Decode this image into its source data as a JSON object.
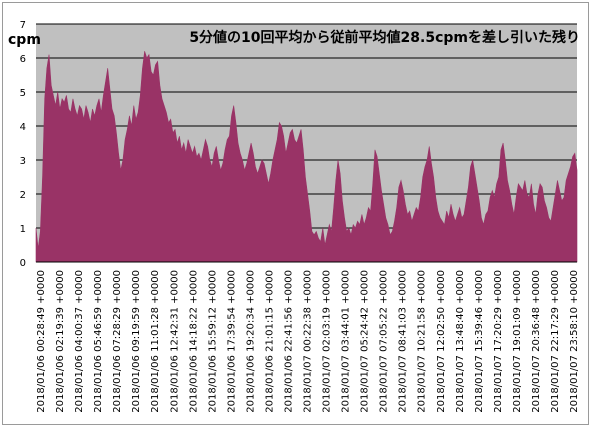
{
  "chart_data": {
    "type": "area",
    "title": "5分値の10回平均から従前平均値28.5cpmを差し引いた残り",
    "ylabel": "cpm",
    "xlabel": "",
    "ylim": [
      0,
      7
    ],
    "yticks": [
      "0",
      "1",
      "2",
      "3",
      "4",
      "5",
      "6",
      "7"
    ],
    "grid": true,
    "legend": "none",
    "colors": {
      "plot_bg": "#c0c0c0",
      "fill": "#993366",
      "grid": "#000000"
    },
    "series": [
      {
        "values": [
          1.0,
          0.4,
          0.9,
          2.5,
          4.8,
          5.7,
          6.1,
          5.2,
          4.9,
          4.6,
          5.0,
          4.5,
          4.8,
          4.7,
          4.9,
          4.5,
          4.4,
          4.8,
          4.5,
          4.3,
          4.6,
          4.5,
          4.2,
          4.6,
          4.4,
          4.1,
          4.5,
          4.3,
          4.6,
          4.8,
          4.4,
          4.9,
          5.3,
          5.7,
          5.1,
          4.5,
          4.3,
          3.8,
          3.2,
          2.7,
          3.0,
          3.6,
          3.9,
          4.3,
          4.0,
          4.6,
          4.2,
          4.4,
          4.9,
          5.7,
          6.2,
          6.0,
          6.1,
          5.6,
          5.5,
          5.8,
          5.9,
          5.2,
          4.8,
          4.6,
          4.4,
          4.1,
          4.2,
          3.8,
          3.9,
          3.5,
          3.7,
          3.3,
          3.5,
          3.2,
          3.6,
          3.4,
          3.2,
          3.4,
          3.1,
          3.2,
          3.0,
          3.3,
          3.6,
          3.4,
          3.0,
          2.8,
          3.2,
          3.4,
          3.0,
          2.7,
          2.9,
          3.3,
          3.6,
          3.7,
          4.3,
          4.6,
          4.1,
          3.5,
          3.2,
          3.0,
          2.7,
          2.9,
          3.2,
          3.5,
          3.2,
          2.8,
          2.6,
          2.8,
          3.0,
          2.9,
          2.6,
          2.3,
          2.6,
          3.0,
          3.3,
          3.6,
          4.1,
          4.0,
          3.7,
          3.2,
          3.5,
          3.8,
          3.9,
          3.6,
          3.5,
          3.7,
          3.9,
          3.3,
          2.5,
          2.0,
          1.5,
          0.9,
          0.8,
          0.9,
          0.7,
          0.6,
          1.0,
          0.5,
          0.8,
          1.1,
          0.9,
          1.6,
          2.4,
          3.0,
          2.6,
          1.8,
          1.3,
          0.9,
          1.0,
          0.8,
          1.1,
          1.0,
          1.2,
          1.1,
          1.4,
          1.1,
          1.3,
          1.6,
          1.5,
          2.3,
          3.3,
          3.1,
          2.6,
          2.1,
          1.7,
          1.3,
          1.1,
          0.8,
          0.9,
          1.2,
          1.6,
          2.2,
          2.4,
          2.1,
          1.7,
          1.4,
          1.5,
          1.2,
          1.4,
          1.6,
          1.5,
          1.9,
          2.5,
          2.8,
          3.0,
          3.4,
          2.9,
          2.5,
          1.9,
          1.5,
          1.3,
          1.2,
          1.1,
          1.5,
          1.3,
          1.7,
          1.4,
          1.2,
          1.4,
          1.6,
          1.3,
          1.4,
          1.8,
          2.2,
          2.8,
          3.0,
          2.6,
          2.2,
          1.8,
          1.3,
          1.1,
          1.4,
          1.5,
          1.9,
          2.1,
          1.9,
          2.3,
          2.5,
          3.3,
          3.5,
          3.0,
          2.4,
          2.1,
          1.7,
          1.4,
          1.9,
          2.3,
          2.2,
          2.1,
          2.4,
          2.0,
          1.9,
          2.3,
          1.7,
          1.4,
          2.0,
          2.3,
          2.2,
          1.8,
          1.6,
          1.3,
          1.2,
          1.6,
          2.0,
          2.4,
          2.1,
          1.8,
          1.9,
          2.4,
          2.6,
          2.8,
          3.1,
          3.2,
          2.7
        ]
      }
    ],
    "xticks": [
      "2018/01/06 00:28:49 +0000",
      "2018/01/06 02:19:39 +0000",
      "2018/01/06 04:00:37 +0000",
      "2018/01/06 05:46:59 +0000",
      "2018/01/06 07:28:29 +0000",
      "2018/01/06 09:19:59 +0000",
      "2018/01/06 11:01:28 +0000",
      "2018/01/06 12:42:31 +0000",
      "2018/01/06 14:18:22 +0000",
      "2018/01/06 15:59:12 +0000",
      "2018/01/06 17:39:54 +0000",
      "2018/01/06 19:20:34 +0000",
      "2018/01/06 21:01:15 +0000",
      "2018/01/06 22:41:56 +0000",
      "2018/01/07 00:22:38 +0000",
      "2018/01/07 02:03:19 +0000",
      "2018/01/07 03:44:01 +0000",
      "2018/01/07 05:24:42 +0000",
      "2018/01/07 07:05:22 +0000",
      "2018/01/07 08:41:03 +0000",
      "2018/01/07 10:21:58 +0000",
      "2018/01/07 12:02:50 +0000",
      "2018/01/07 13:48:40 +0000",
      "2018/01/07 15:39:46 +0000",
      "2018/01/07 17:20:29 +0000",
      "2018/01/07 19:01:09 +0000",
      "2018/01/07 20:36:48 +0000",
      "2018/01/07 22:17:29 +0000",
      "2018/01/07 23:58:10 +0000"
    ]
  }
}
